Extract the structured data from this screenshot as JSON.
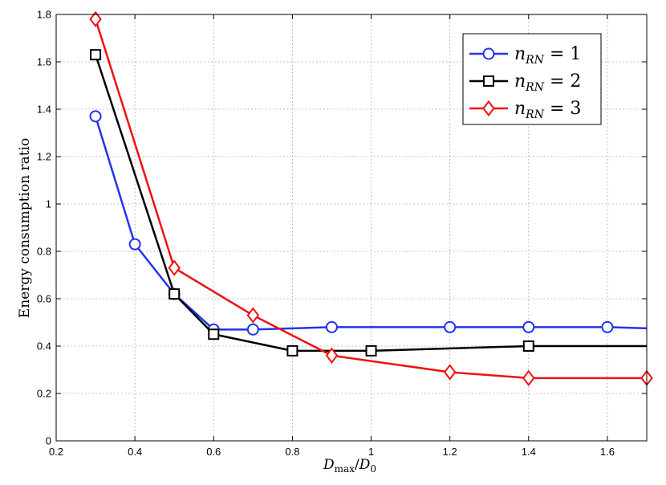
{
  "chart_data": {
    "type": "line",
    "title": "",
    "xlabel": "D_max/D_0",
    "xlabel_parts": {
      "main": "D",
      "sub1": "max",
      "slash": "/",
      "main2": "D",
      "sub2": "0"
    },
    "ylabel": "Energy consumption ratio",
    "xlim": [
      0.2,
      1.7
    ],
    "ylim": [
      0,
      1.8
    ],
    "xticks": [
      0.2,
      0.4,
      0.6,
      0.8,
      1.0,
      1.2,
      1.4,
      1.6
    ],
    "xtick_labels": [
      "0.2",
      "0.4",
      "0.6",
      "0.8",
      "1",
      "1.2",
      "1.4",
      "1.6"
    ],
    "yticks": [
      0,
      0.2,
      0.4,
      0.6,
      0.8,
      1.0,
      1.2,
      1.4,
      1.6,
      1.8
    ],
    "ytick_labels": [
      "0",
      "0.2",
      "0.4",
      "0.6",
      "0.8",
      "1",
      "1.2",
      "1.4",
      "1.6",
      "1.8"
    ],
    "grid": true,
    "legend_position": "top-right",
    "series": [
      {
        "name": "n_RN = 1",
        "legend_var": "n",
        "legend_sub": "RN",
        "legend_rhs": " = 1",
        "color": "#2233ee",
        "marker": "circle",
        "x": [
          0.3,
          0.4,
          0.5,
          0.6,
          0.7,
          0.9,
          1.2,
          1.4,
          1.6,
          1.7
        ],
        "y": [
          1.37,
          0.83,
          0.62,
          0.47,
          0.47,
          0.48,
          0.48,
          0.48,
          0.48,
          0.475
        ],
        "marker_mask": [
          true,
          true,
          true,
          true,
          true,
          true,
          true,
          true,
          true,
          false
        ]
      },
      {
        "name": "n_RN = 2",
        "legend_var": "n",
        "legend_sub": "RN",
        "legend_rhs": " = 2",
        "color": "#000000",
        "marker": "square",
        "x": [
          0.3,
          0.5,
          0.6,
          0.8,
          1.0,
          1.4,
          1.7
        ],
        "y": [
          1.63,
          0.62,
          0.45,
          0.38,
          0.38,
          0.4,
          0.4
        ],
        "marker_mask": [
          true,
          true,
          true,
          true,
          true,
          true,
          false
        ]
      },
      {
        "name": "n_RN = 3",
        "legend_var": "n",
        "legend_sub": "RN",
        "legend_rhs": " = 3",
        "color": "#ee1111",
        "marker": "diamond",
        "x": [
          0.3,
          0.5,
          0.7,
          0.9,
          1.2,
          1.4,
          1.7
        ],
        "y": [
          1.78,
          0.73,
          0.53,
          0.36,
          0.29,
          0.265,
          0.265
        ],
        "marker_mask": [
          true,
          true,
          true,
          true,
          true,
          true,
          true
        ]
      }
    ]
  }
}
